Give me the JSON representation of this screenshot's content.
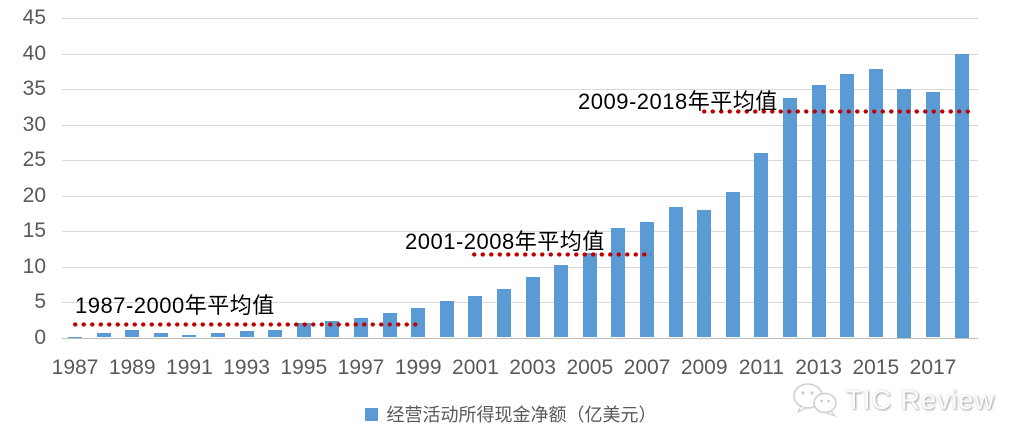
{
  "chart_data": {
    "type": "bar",
    "title": "",
    "legend_label": "经营活动所得现金净额（亿美元）",
    "bar_color": "#5b9bd5",
    "avg_line_color": "#c00000",
    "categories": [
      1987,
      1988,
      1989,
      1990,
      1991,
      1992,
      1993,
      1994,
      1995,
      1996,
      1997,
      1998,
      1999,
      2000,
      2001,
      2002,
      2003,
      2004,
      2005,
      2006,
      2007,
      2008,
      2009,
      2010,
      2011,
      2012,
      2013,
      2014,
      2015,
      2016,
      2017,
      2018
    ],
    "values": [
      0.1,
      0.6,
      1.0,
      0.7,
      0.3,
      0.6,
      0.9,
      1.1,
      2.1,
      2.3,
      2.8,
      3.5,
      4.2,
      5.1,
      5.9,
      6.9,
      8.5,
      10.2,
      11.9,
      15.4,
      16.3,
      18.4,
      17.9,
      20.5,
      26.0,
      33.8,
      35.5,
      37.1,
      37.8,
      35.0,
      34.6,
      40.0
    ],
    "ylim": [
      0,
      45
    ],
    "ytick_step": 5,
    "xtick_labels": [
      "1987",
      "1989",
      "1991",
      "1993",
      "1995",
      "1997",
      "1999",
      "2001",
      "2003",
      "2005",
      "2007",
      "2009",
      "2011",
      "2013",
      "2015",
      "2017"
    ],
    "grid": true,
    "legend_position": "bottom-center",
    "avg_lines": [
      {
        "label": "1987-2000年平均值",
        "start_year": 1987,
        "end_year": 2000,
        "value": 1.9
      },
      {
        "label": "2001-2008年平均值",
        "start_year": 2001,
        "end_year": 2008,
        "value": 11.7
      },
      {
        "label": "2009-2018年平均值",
        "start_year": 2009,
        "end_year": 2018,
        "value": 31.8
      }
    ]
  },
  "watermark": {
    "text": "TIC Review"
  }
}
